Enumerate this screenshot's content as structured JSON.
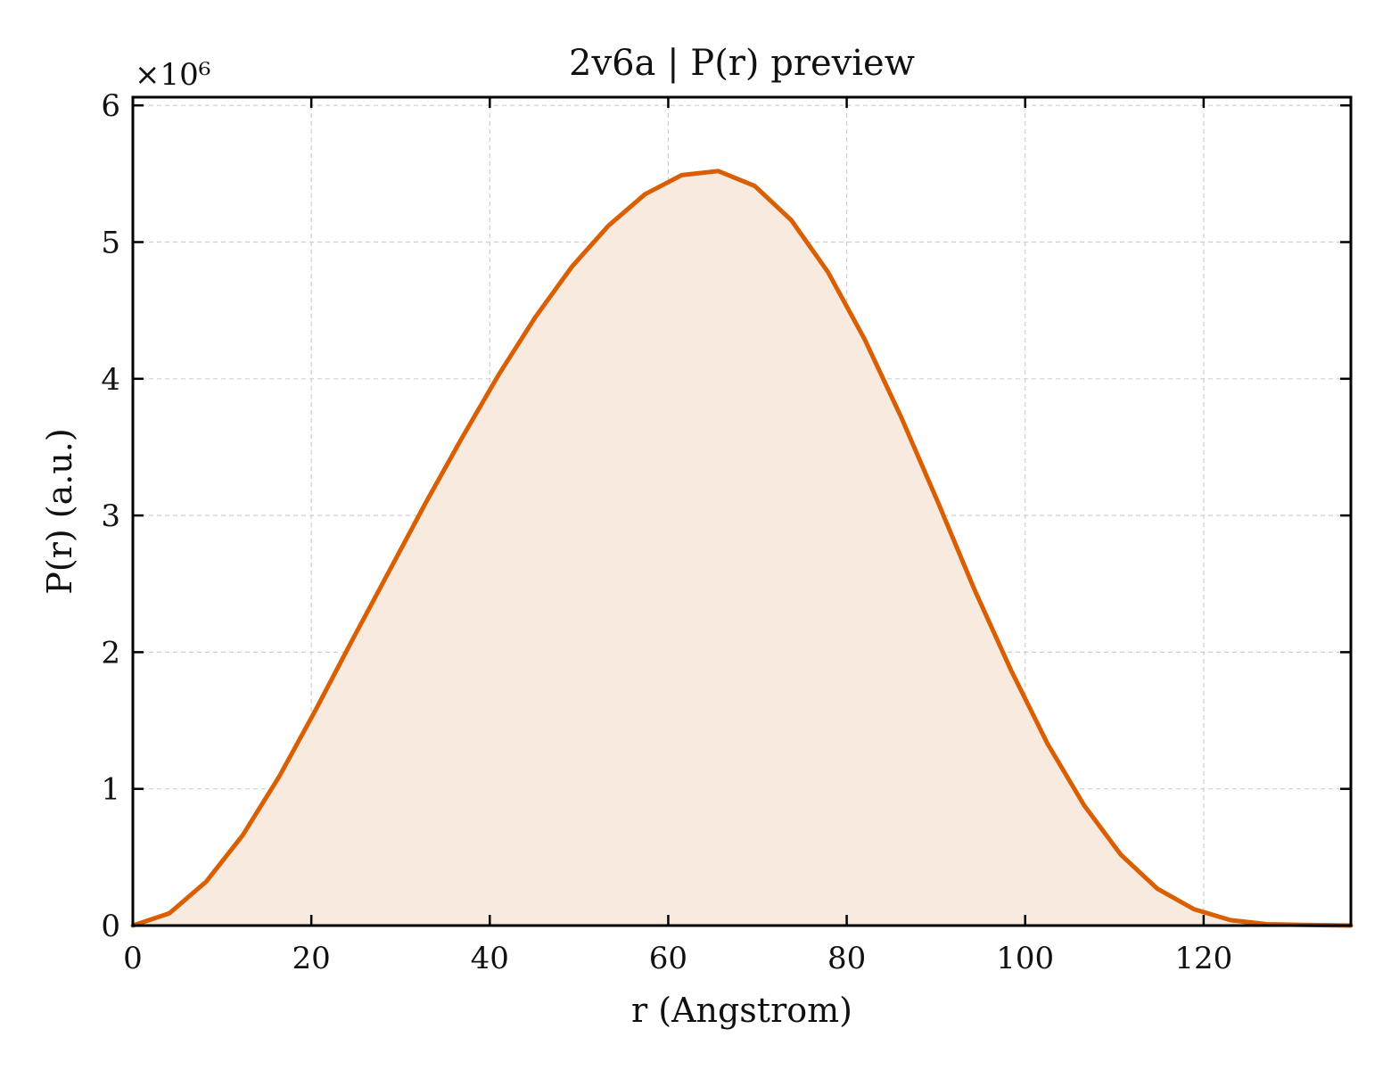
{
  "chart_data": {
    "type": "area",
    "title": "2v6a | P(r) preview",
    "xlabel": "r (Angstrom)",
    "ylabel": "P(r) (a.u.)",
    "y_multiplier": "×10⁶",
    "xlim": [
      0,
      136.5
    ],
    "ylim": [
      0,
      6.06
    ],
    "xticks": [
      0,
      20,
      40,
      60,
      80,
      100,
      120
    ],
    "yticks": [
      0,
      1,
      2,
      3,
      4,
      5,
      6
    ],
    "grid": true,
    "line_color": "#d95f02",
    "fill_color": "#f9eadf",
    "series": [
      {
        "x": [
          0,
          4.1,
          8.2,
          12.3,
          16.4,
          20.5,
          24.6,
          28.7,
          32.8,
          36.9,
          41.0,
          45.1,
          49.2,
          53.3,
          57.4,
          61.5,
          65.6,
          69.7,
          73.8,
          77.9,
          82.0,
          86.1,
          90.2,
          94.3,
          98.4,
          102.5,
          106.6,
          110.7,
          114.8,
          118.9,
          123.0,
          127.1,
          131.2,
          136.5
        ],
        "y": [
          0.0,
          0.09,
          0.32,
          0.66,
          1.09,
          1.58,
          2.09,
          2.59,
          3.09,
          3.57,
          4.03,
          4.45,
          4.82,
          5.12,
          5.35,
          5.49,
          5.52,
          5.41,
          5.16,
          4.78,
          4.29,
          3.72,
          3.1,
          2.46,
          1.87,
          1.33,
          0.88,
          0.52,
          0.27,
          0.12,
          0.04,
          0.01,
          0.005,
          0.0
        ]
      }
    ]
  }
}
